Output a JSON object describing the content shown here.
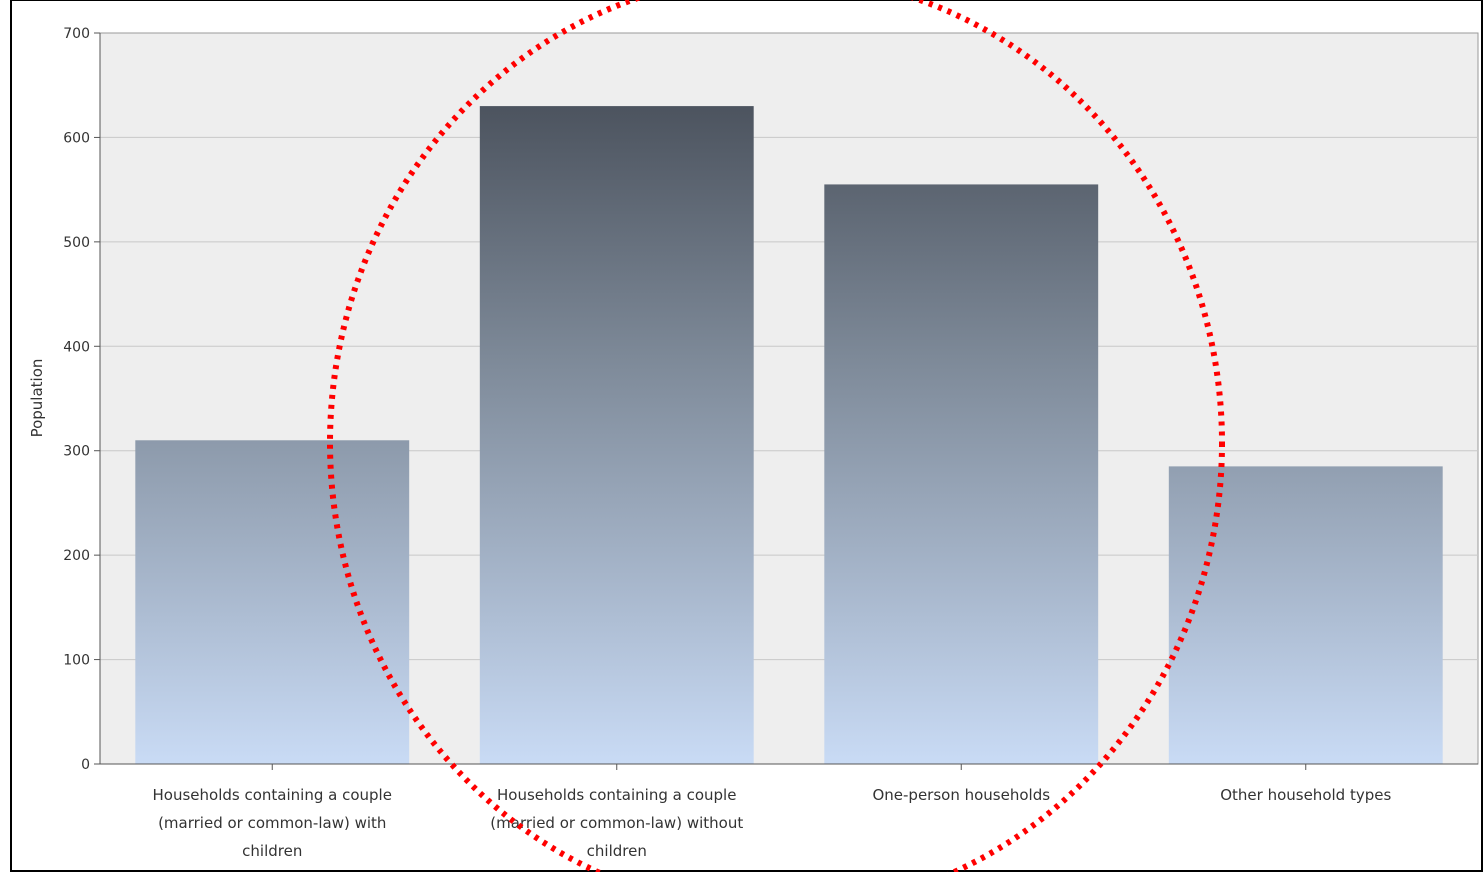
{
  "chart_data": {
    "type": "bar",
    "title": "",
    "xlabel": "",
    "ylabel": "Population",
    "ylim": [
      0,
      700
    ],
    "yticks": [
      0,
      100,
      200,
      300,
      400,
      500,
      600,
      700
    ],
    "grid": true,
    "legend": "none",
    "categories": [
      [
        "Households containing a couple",
        "(married or common-law) with",
        "children"
      ],
      [
        "Households containing a couple",
        "(married or common-law) without",
        "children"
      ],
      [
        "One-person households"
      ],
      [
        "Other household types"
      ]
    ],
    "values": [
      310,
      630,
      555,
      285
    ],
    "colors": {
      "bar_top": "#3e444e",
      "bar_bottom": "#c9dbf5",
      "plot_background": "#eeeeee",
      "gridline": "#c8c8c8",
      "annotation_ellipse": "#ff0000"
    },
    "annotation": {
      "shape": "ellipse",
      "style": "dotted",
      "encloses_categories": [
        1,
        2
      ]
    }
  }
}
